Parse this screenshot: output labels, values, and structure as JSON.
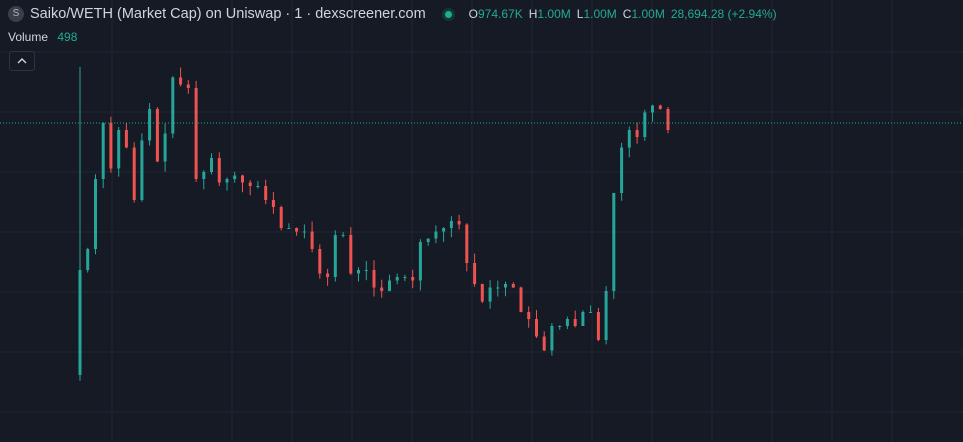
{
  "header": {
    "symbol_icon": "S",
    "title": "Saiko/WETH (Market Cap) on Uniswap · 1 · dexscreener.com",
    "status_icon": "market-open-dot-icon",
    "ohlc": {
      "open_label": "O",
      "open_value": "974.67K",
      "high_label": "H",
      "high_value": "1.00M",
      "low_label": "L",
      "low_value": "1.00M",
      "close_label": "C",
      "close_value": "1.00M",
      "change_value": "28,694.28 (+2.94%)"
    }
  },
  "volume": {
    "label": "Volume",
    "value": "498"
  },
  "collapse_button": {
    "icon": "chevron-up-icon"
  },
  "colors": {
    "background": "#161a25",
    "grid": "#232733",
    "up": "#26a69a",
    "down": "#ef5350",
    "price_line": "#22ab94"
  },
  "chart_data": {
    "type": "line",
    "style": "candlestick",
    "x": [
      0,
      1,
      2,
      3,
      4,
      5,
      6,
      7,
      8,
      9,
      10,
      11,
      12,
      13,
      14,
      15,
      16,
      17,
      18,
      19,
      20,
      21,
      22,
      23,
      24,
      25,
      26,
      27,
      28,
      29,
      30,
      31,
      32,
      33,
      34,
      35,
      36,
      37,
      38,
      39,
      40,
      41,
      42,
      43,
      44,
      45,
      46,
      47,
      48,
      49,
      50,
      51,
      52,
      53,
      54,
      55,
      56,
      57,
      58,
      59,
      60,
      61,
      62,
      63,
      64,
      65,
      66,
      67,
      68,
      69,
      70,
      71,
      72,
      73,
      74,
      75,
      76
    ],
    "series": [
      {
        "values": [
          0.4,
          0.46,
          0.66,
          0.82,
          0.69,
          0.8,
          0.75,
          0.6,
          0.77,
          0.86,
          0.71,
          0.79,
          0.95,
          0.93,
          0.92,
          0.66,
          0.68,
          0.72,
          0.65,
          0.66,
          0.67,
          0.65,
          0.64,
          0.64,
          0.6,
          0.58,
          0.52,
          0.52,
          0.51,
          0.51,
          0.46,
          0.39,
          0.38,
          0.5,
          0.5,
          0.39,
          0.4,
          0.4,
          0.35,
          0.34,
          0.37,
          0.38,
          0.38,
          0.37,
          0.48,
          0.49,
          0.51,
          0.52,
          0.54,
          0.53,
          0.42,
          0.36,
          0.31,
          0.35,
          0.35,
          0.36,
          0.35,
          0.28,
          0.26,
          0.21,
          0.17,
          0.24,
          0.24,
          0.26,
          0.24,
          0.28,
          0.28,
          0.2,
          0.34,
          0.62,
          0.75,
          0.8,
          0.78,
          0.85,
          0.87,
          0.86,
          0.8
        ],
        "low": 0.1,
        "high": 0.98
      }
    ],
    "current_value_line": 0.82,
    "grid": true,
    "xlabel": "",
    "ylabel": ""
  }
}
